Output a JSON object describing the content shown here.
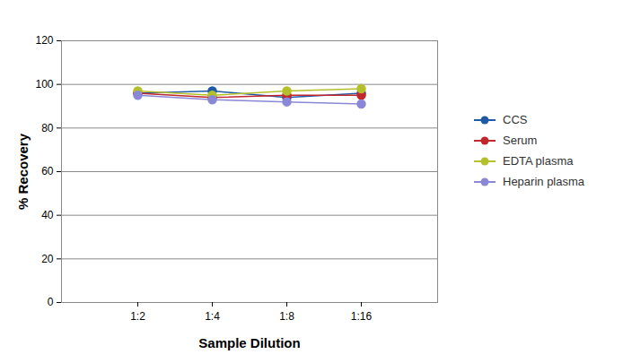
{
  "chart_data": {
    "type": "line",
    "x_label": "Sample Dilution",
    "y_label": "% Recovery",
    "categories": [
      "1:2",
      "1:4",
      "1:8",
      "1:16"
    ],
    "series": [
      {
        "name": "CCS",
        "color": "#1f5aa6",
        "values": [
          96,
          97,
          94,
          96
        ]
      },
      {
        "name": "Serum",
        "color": "#c0282d",
        "values": [
          96,
          94,
          95,
          95
        ]
      },
      {
        "name": "EDTA plasma",
        "color": "#b3c02a",
        "values": [
          97,
          95,
          97,
          98
        ]
      },
      {
        "name": "Heparin plasma",
        "color": "#8a88d6",
        "values": [
          95,
          93,
          92,
          91
        ]
      }
    ],
    "ylim": [
      0,
      120
    ],
    "yticks": [
      0,
      20,
      40,
      60,
      80,
      100,
      120
    ],
    "grid": true,
    "legend": "right",
    "marker": "circle"
  }
}
